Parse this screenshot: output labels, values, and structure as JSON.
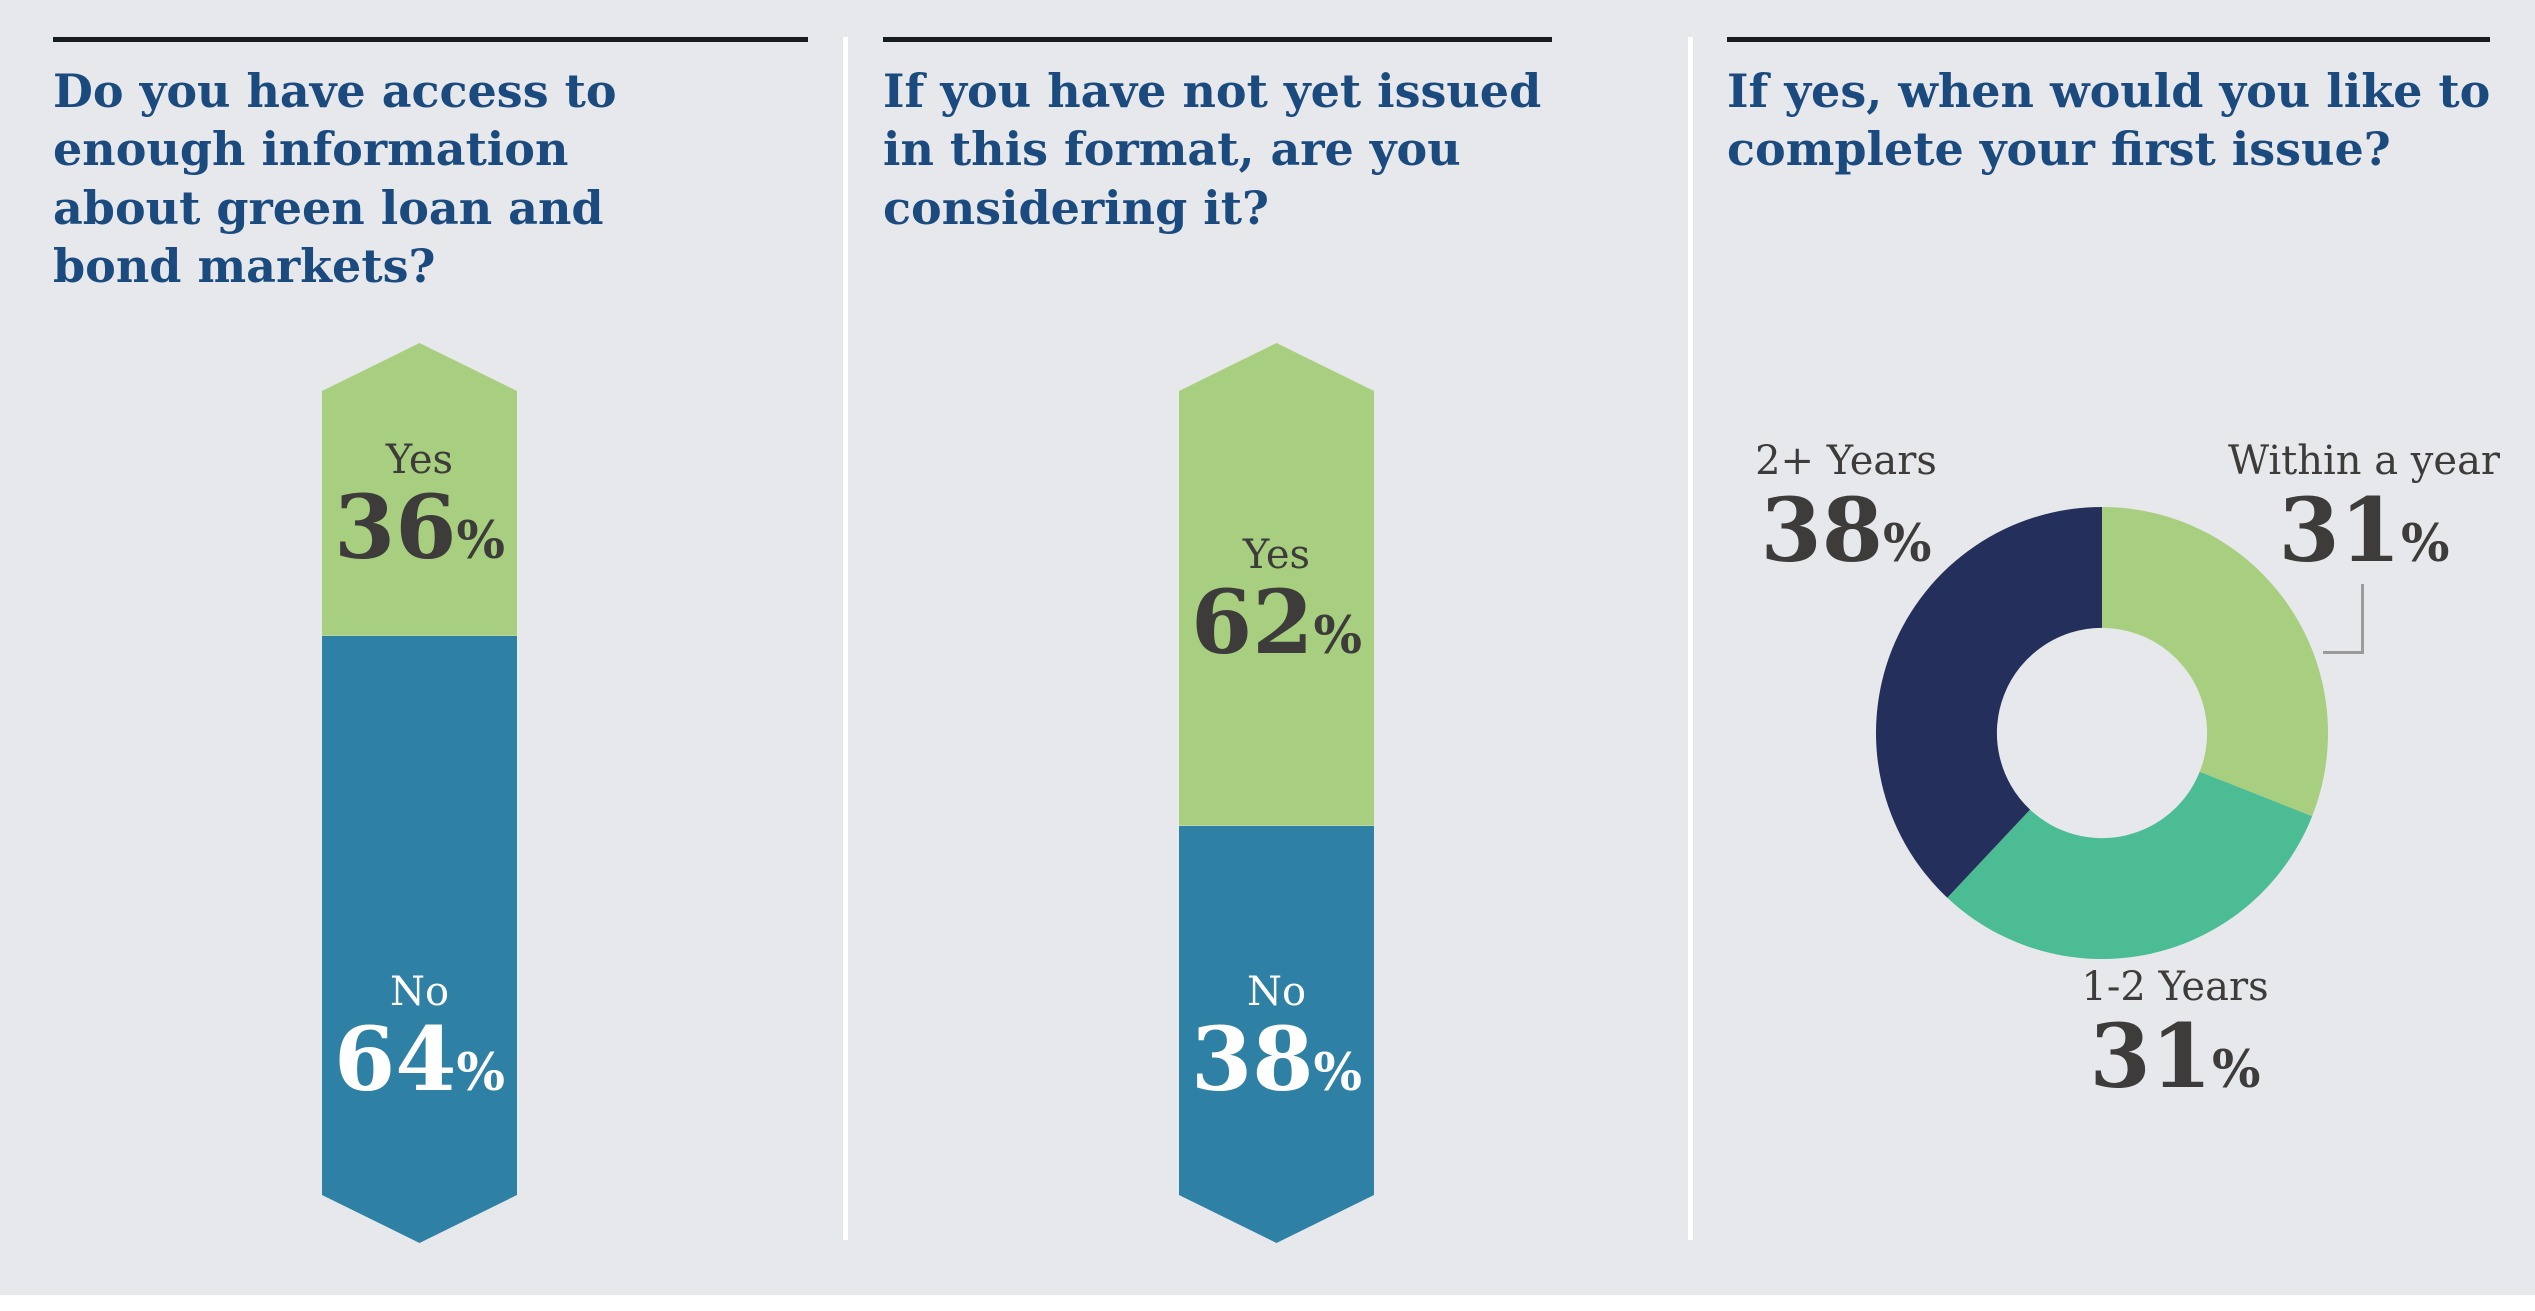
{
  "page": {
    "background": "#e6e8ec"
  },
  "colors": {
    "heading": "#1b4b7e",
    "rule": "#191c1f",
    "divider": "#ffffff",
    "text_dark": "#3d3c3b",
    "text_light": "#ffffff",
    "callout_line": "#9b9b9b",
    "green": "#a8cf80",
    "teal": "#2e81a4",
    "seafoam": "#4cbc95",
    "navy": "#252f5b"
  },
  "chart_data": [
    {
      "type": "bar",
      "variant": "vertical-arrow-stack",
      "title": "Do you have access to enough information about green loan and bond markets?",
      "categories": [
        "Yes",
        "No"
      ],
      "values": [
        36,
        64
      ],
      "unit": "%",
      "segment_colors": [
        "#a8cf80",
        "#2e81a4"
      ],
      "label_colors": [
        "#3d3c3b",
        "#ffffff"
      ]
    },
    {
      "type": "bar",
      "variant": "vertical-arrow-stack",
      "title": "If you have not yet issued in this format, are you considering it?",
      "categories": [
        "Yes",
        "No"
      ],
      "values": [
        62,
        38
      ],
      "unit": "%",
      "segment_colors": [
        "#a8cf80",
        "#2e81a4"
      ],
      "label_colors": [
        "#3d3c3b",
        "#ffffff"
      ]
    },
    {
      "type": "pie",
      "variant": "donut",
      "title": "If yes, when would you like to complete your first issue?",
      "categories": [
        "Within a year",
        "1-2 Years",
        "2+ Years"
      ],
      "values": [
        31,
        31,
        38
      ],
      "unit": "%",
      "slice_colors": [
        "#a8cf80",
        "#4cbc95",
        "#252f5b"
      ],
      "start_angle_deg": 0,
      "direction": "clockwise",
      "inner_radius_ratio": 0.465,
      "legend_position": "around-chart"
    }
  ]
}
